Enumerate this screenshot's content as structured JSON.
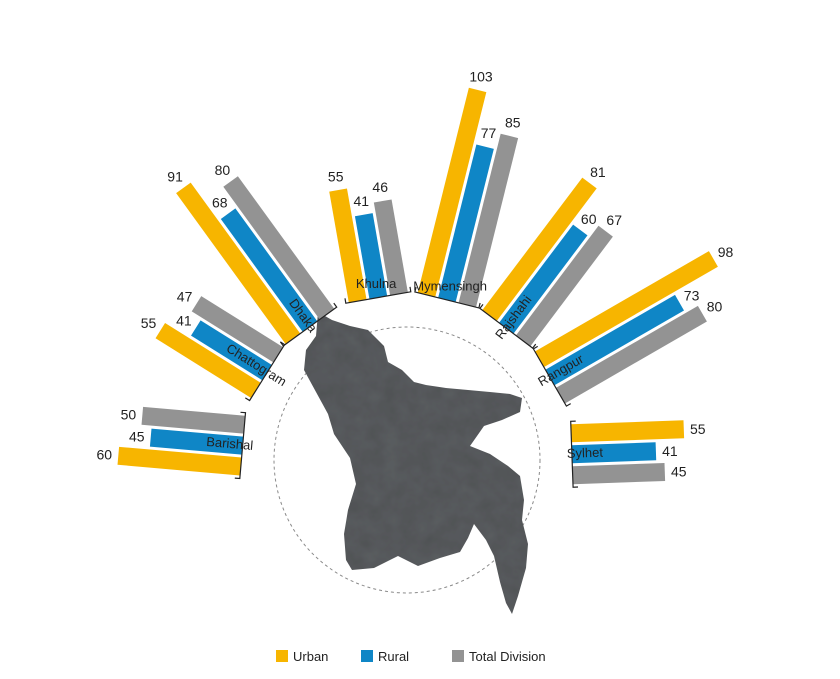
{
  "chart_data": {
    "type": "bar",
    "layout": "radial",
    "categories": [
      "Barishal",
      "Chattogram",
      "Dhaka",
      "Khulna",
      "Mymensingh",
      "Rajshahi",
      "Rangpur",
      "Sylhet"
    ],
    "series": [
      {
        "name": "Urban",
        "color": "#F7B500",
        "values": [
          60,
          55,
          91,
          55,
          103,
          81,
          98,
          55
        ]
      },
      {
        "name": "Rural",
        "color": "#0F86C6",
        "values": [
          45,
          41,
          68,
          41,
          77,
          60,
          73,
          41
        ]
      },
      {
        "name": "Total Division",
        "color": "#939393",
        "values": [
          50,
          47,
          80,
          46,
          85,
          67,
          80,
          45
        ]
      }
    ],
    "legend_position": "bottom-center",
    "center_image": "bangladesh-map",
    "grid": false
  }
}
